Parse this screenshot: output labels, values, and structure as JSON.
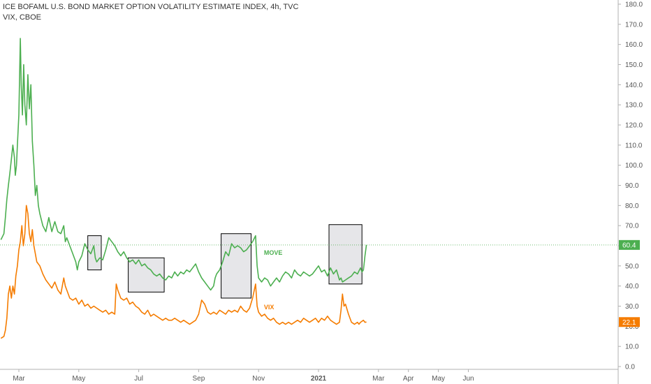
{
  "legend": {
    "line1": "ICE BOFAML U.S. BOND MARKET OPTION VOLATILITY ESTIMATE INDEX, 4h, TVC",
    "line2": "VIX, CBOE"
  },
  "colors": {
    "move": "#4caf50",
    "vix": "#f57c00",
    "axis_text": "#555555",
    "box_fill": "#e6e6e9",
    "box_stroke": "#000000",
    "ref_line": "#4caf50"
  },
  "chart_data": {
    "type": "line",
    "title": "ICE BOFAML U.S. BOND MARKET OPTION VOLATILITY ESTIMATE INDEX, 4h, TVC",
    "ylim": [
      0,
      180
    ],
    "y_ticks": [
      "0.0",
      "10.0",
      "20.0",
      "30.0",
      "40.0",
      "50.0",
      "60.0",
      "70.0",
      "80.0",
      "90.0",
      "100.0",
      "110.0",
      "120.0",
      "130.0",
      "140.0",
      "150.0",
      "160.0",
      "170.0",
      "180.0"
    ],
    "x_ticks": [
      {
        "label": "Mar",
        "t": 2.0,
        "bold": false
      },
      {
        "label": "May",
        "t": 4.0,
        "bold": false
      },
      {
        "label": "Jul",
        "t": 6.0,
        "bold": false
      },
      {
        "label": "Sep",
        "t": 8.0,
        "bold": false
      },
      {
        "label": "Nov",
        "t": 10.0,
        "bold": false
      },
      {
        "label": "2021",
        "t": 12.0,
        "bold": true
      },
      {
        "label": "Mar",
        "t": 14.0,
        "bold": false
      },
      {
        "label": "Apr",
        "t": 15.0,
        "bold": false
      },
      {
        "label": "May",
        "t": 16.0,
        "bold": false
      },
      {
        "label": "Jun",
        "t": 17.0,
        "bold": false
      }
    ],
    "x_range": [
      1.4,
      18.0
    ],
    "series": [
      {
        "name": "MOVE",
        "last_value": "60.4",
        "points": [
          [
            1.4,
            63
          ],
          [
            1.5,
            66
          ],
          [
            1.55,
            74
          ],
          [
            1.6,
            83
          ],
          [
            1.65,
            90
          ],
          [
            1.7,
            96
          ],
          [
            1.75,
            103
          ],
          [
            1.8,
            110
          ],
          [
            1.85,
            104
          ],
          [
            1.88,
            95
          ],
          [
            1.92,
            100
          ],
          [
            1.95,
            110
          ],
          [
            2.0,
            125
          ],
          [
            2.05,
            163
          ],
          [
            2.08,
            140
          ],
          [
            2.12,
            125
          ],
          [
            2.16,
            150
          ],
          [
            2.2,
            130
          ],
          [
            2.25,
            120
          ],
          [
            2.3,
            145
          ],
          [
            2.35,
            128
          ],
          [
            2.4,
            140
          ],
          [
            2.45,
            112
          ],
          [
            2.5,
            100
          ],
          [
            2.55,
            85
          ],
          [
            2.6,
            90
          ],
          [
            2.65,
            80
          ],
          [
            2.7,
            76
          ],
          [
            2.8,
            70
          ],
          [
            2.9,
            67
          ],
          [
            3.0,
            74
          ],
          [
            3.1,
            67
          ],
          [
            3.2,
            72
          ],
          [
            3.3,
            67
          ],
          [
            3.4,
            66
          ],
          [
            3.5,
            70
          ],
          [
            3.55,
            62
          ],
          [
            3.6,
            64
          ],
          [
            3.7,
            60
          ],
          [
            3.8,
            56
          ],
          [
            3.9,
            52
          ],
          [
            3.95,
            48
          ],
          [
            4.0,
            52
          ],
          [
            4.1,
            55
          ],
          [
            4.2,
            61
          ],
          [
            4.3,
            58
          ],
          [
            4.4,
            56
          ],
          [
            4.5,
            60
          ],
          [
            4.55,
            54
          ],
          [
            4.6,
            52
          ],
          [
            4.7,
            54
          ],
          [
            4.8,
            53
          ],
          [
            4.9,
            58
          ],
          [
            5.0,
            64
          ],
          [
            5.1,
            62
          ],
          [
            5.2,
            60
          ],
          [
            5.3,
            57
          ],
          [
            5.4,
            55
          ],
          [
            5.5,
            57
          ],
          [
            5.6,
            54
          ],
          [
            5.7,
            52
          ],
          [
            5.8,
            53
          ],
          [
            5.9,
            51
          ],
          [
            6.0,
            53
          ],
          [
            6.1,
            50
          ],
          [
            6.2,
            51
          ],
          [
            6.3,
            49
          ],
          [
            6.4,
            48
          ],
          [
            6.5,
            46
          ],
          [
            6.6,
            45
          ],
          [
            6.7,
            46
          ],
          [
            6.8,
            44
          ],
          [
            6.9,
            43
          ],
          [
            7.0,
            45
          ],
          [
            7.1,
            44
          ],
          [
            7.2,
            47
          ],
          [
            7.3,
            45
          ],
          [
            7.4,
            47
          ],
          [
            7.5,
            46
          ],
          [
            7.6,
            48
          ],
          [
            7.7,
            47
          ],
          [
            7.8,
            49
          ],
          [
            7.9,
            51
          ],
          [
            8.0,
            47
          ],
          [
            8.1,
            44
          ],
          [
            8.2,
            42
          ],
          [
            8.3,
            40
          ],
          [
            8.4,
            38
          ],
          [
            8.5,
            40
          ],
          [
            8.55,
            44
          ],
          [
            8.6,
            46
          ],
          [
            8.7,
            48
          ],
          [
            8.75,
            50
          ],
          [
            8.8,
            52
          ],
          [
            8.9,
            57
          ],
          [
            9.0,
            55
          ],
          [
            9.1,
            61
          ],
          [
            9.2,
            59
          ],
          [
            9.3,
            60
          ],
          [
            9.4,
            59
          ],
          [
            9.5,
            57
          ],
          [
            9.6,
            58
          ],
          [
            9.7,
            60
          ],
          [
            9.8,
            62
          ],
          [
            9.9,
            65
          ],
          [
            9.95,
            50
          ],
          [
            10.0,
            44
          ],
          [
            10.1,
            42
          ],
          [
            10.2,
            44
          ],
          [
            10.3,
            43
          ],
          [
            10.4,
            40
          ],
          [
            10.5,
            42
          ],
          [
            10.6,
            44
          ],
          [
            10.7,
            42
          ],
          [
            10.8,
            45
          ],
          [
            10.9,
            47
          ],
          [
            11.0,
            46
          ],
          [
            11.1,
            44
          ],
          [
            11.2,
            48
          ],
          [
            11.3,
            46
          ],
          [
            11.4,
            45
          ],
          [
            11.5,
            47
          ],
          [
            11.6,
            46
          ],
          [
            11.7,
            45
          ],
          [
            11.8,
            46
          ],
          [
            11.9,
            48
          ],
          [
            12.0,
            50
          ],
          [
            12.1,
            47
          ],
          [
            12.2,
            48
          ],
          [
            12.3,
            45
          ],
          [
            12.4,
            49
          ],
          [
            12.5,
            46
          ],
          [
            12.6,
            48
          ],
          [
            12.7,
            43
          ],
          [
            12.75,
            44
          ],
          [
            12.8,
            42
          ],
          [
            12.9,
            43
          ],
          [
            13.0,
            44
          ],
          [
            13.1,
            45
          ],
          [
            13.2,
            47
          ],
          [
            13.3,
            46
          ],
          [
            13.4,
            49
          ],
          [
            13.45,
            47
          ],
          [
            13.5,
            48
          ],
          [
            13.55,
            55
          ],
          [
            13.6,
            60.4
          ]
        ]
      },
      {
        "name": "VIX",
        "last_value": "22.1",
        "points": [
          [
            1.4,
            14
          ],
          [
            1.5,
            15
          ],
          [
            1.55,
            18
          ],
          [
            1.6,
            24
          ],
          [
            1.65,
            36
          ],
          [
            1.7,
            40
          ],
          [
            1.75,
            34
          ],
          [
            1.8,
            40
          ],
          [
            1.85,
            36
          ],
          [
            1.9,
            45
          ],
          [
            1.95,
            50
          ],
          [
            2.0,
            58
          ],
          [
            2.05,
            62
          ],
          [
            2.1,
            70
          ],
          [
            2.15,
            60
          ],
          [
            2.2,
            66
          ],
          [
            2.25,
            80
          ],
          [
            2.3,
            76
          ],
          [
            2.35,
            66
          ],
          [
            2.4,
            62
          ],
          [
            2.45,
            68
          ],
          [
            2.5,
            60
          ],
          [
            2.55,
            56
          ],
          [
            2.6,
            52
          ],
          [
            2.7,
            50
          ],
          [
            2.8,
            46
          ],
          [
            2.9,
            43
          ],
          [
            3.0,
            41
          ],
          [
            3.1,
            39
          ],
          [
            3.2,
            42
          ],
          [
            3.3,
            38
          ],
          [
            3.4,
            36
          ],
          [
            3.5,
            44
          ],
          [
            3.55,
            40
          ],
          [
            3.6,
            38
          ],
          [
            3.7,
            34
          ],
          [
            3.8,
            33
          ],
          [
            3.9,
            34
          ],
          [
            4.0,
            31
          ],
          [
            4.1,
            33
          ],
          [
            4.2,
            30
          ],
          [
            4.3,
            31
          ],
          [
            4.4,
            29
          ],
          [
            4.5,
            30
          ],
          [
            4.6,
            29
          ],
          [
            4.7,
            28
          ],
          [
            4.8,
            27
          ],
          [
            4.9,
            28
          ],
          [
            5.0,
            26
          ],
          [
            5.1,
            27
          ],
          [
            5.2,
            26
          ],
          [
            5.25,
            41
          ],
          [
            5.3,
            38
          ],
          [
            5.4,
            34
          ],
          [
            5.5,
            33
          ],
          [
            5.6,
            34
          ],
          [
            5.7,
            31
          ],
          [
            5.8,
            32
          ],
          [
            5.9,
            30
          ],
          [
            6.0,
            29
          ],
          [
            6.1,
            27
          ],
          [
            6.2,
            26
          ],
          [
            6.3,
            28
          ],
          [
            6.4,
            25
          ],
          [
            6.5,
            26
          ],
          [
            6.6,
            25
          ],
          [
            6.7,
            24
          ],
          [
            6.8,
            23
          ],
          [
            6.9,
            24
          ],
          [
            7.0,
            23
          ],
          [
            7.1,
            23
          ],
          [
            7.2,
            24
          ],
          [
            7.3,
            23
          ],
          [
            7.4,
            22
          ],
          [
            7.5,
            23
          ],
          [
            7.6,
            22
          ],
          [
            7.7,
            21
          ],
          [
            7.8,
            22
          ],
          [
            7.9,
            23
          ],
          [
            8.0,
            26
          ],
          [
            8.1,
            33
          ],
          [
            8.2,
            31
          ],
          [
            8.3,
            27
          ],
          [
            8.4,
            26
          ],
          [
            8.5,
            27
          ],
          [
            8.6,
            26
          ],
          [
            8.7,
            28
          ],
          [
            8.8,
            27
          ],
          [
            8.9,
            26
          ],
          [
            9.0,
            28
          ],
          [
            9.1,
            27
          ],
          [
            9.2,
            28
          ],
          [
            9.3,
            27
          ],
          [
            9.4,
            30
          ],
          [
            9.5,
            28
          ],
          [
            9.6,
            27
          ],
          [
            9.7,
            29
          ],
          [
            9.8,
            34
          ],
          [
            9.9,
            41
          ],
          [
            9.95,
            30
          ],
          [
            10.0,
            27
          ],
          [
            10.1,
            25
          ],
          [
            10.2,
            26
          ],
          [
            10.3,
            24
          ],
          [
            10.4,
            23
          ],
          [
            10.5,
            24
          ],
          [
            10.6,
            22
          ],
          [
            10.7,
            21
          ],
          [
            10.8,
            22
          ],
          [
            10.9,
            21
          ],
          [
            11.0,
            22
          ],
          [
            11.1,
            21
          ],
          [
            11.2,
            22
          ],
          [
            11.3,
            23
          ],
          [
            11.4,
            22
          ],
          [
            11.5,
            24
          ],
          [
            11.6,
            23
          ],
          [
            11.7,
            22
          ],
          [
            11.8,
            23
          ],
          [
            11.9,
            24
          ],
          [
            12.0,
            22
          ],
          [
            12.1,
            24
          ],
          [
            12.2,
            23
          ],
          [
            12.3,
            25
          ],
          [
            12.4,
            23
          ],
          [
            12.5,
            22
          ],
          [
            12.6,
            21
          ],
          [
            12.7,
            22
          ],
          [
            12.75,
            28
          ],
          [
            12.8,
            36
          ],
          [
            12.85,
            30
          ],
          [
            12.9,
            31
          ],
          [
            13.0,
            26
          ],
          [
            13.1,
            22
          ],
          [
            13.2,
            21
          ],
          [
            13.3,
            22
          ],
          [
            13.35,
            21
          ],
          [
            13.4,
            22
          ],
          [
            13.5,
            23
          ],
          [
            13.55,
            22
          ],
          [
            13.6,
            22.1
          ]
        ]
      }
    ],
    "annotations": [
      {
        "text": "MOVE",
        "t": 9.9,
        "y": 55.5,
        "color": "#4caf50"
      },
      {
        "text": "VIX",
        "t": 9.9,
        "y": 28.5,
        "color": "#f57c00"
      }
    ],
    "boxes": [
      {
        "t0": 4.3,
        "t1": 4.75,
        "y0": 48,
        "y1": 65
      },
      {
        "t0": 5.65,
        "t1": 6.85,
        "y0": 37,
        "y1": 54
      },
      {
        "t0": 8.75,
        "t1": 9.75,
        "y0": 34,
        "y1": 66
      },
      {
        "t0": 12.35,
        "t1": 13.45,
        "y0": 41,
        "y1": 70.5
      }
    ],
    "reference_line": {
      "y": 60.4,
      "style": "dotted"
    },
    "grid": false
  }
}
